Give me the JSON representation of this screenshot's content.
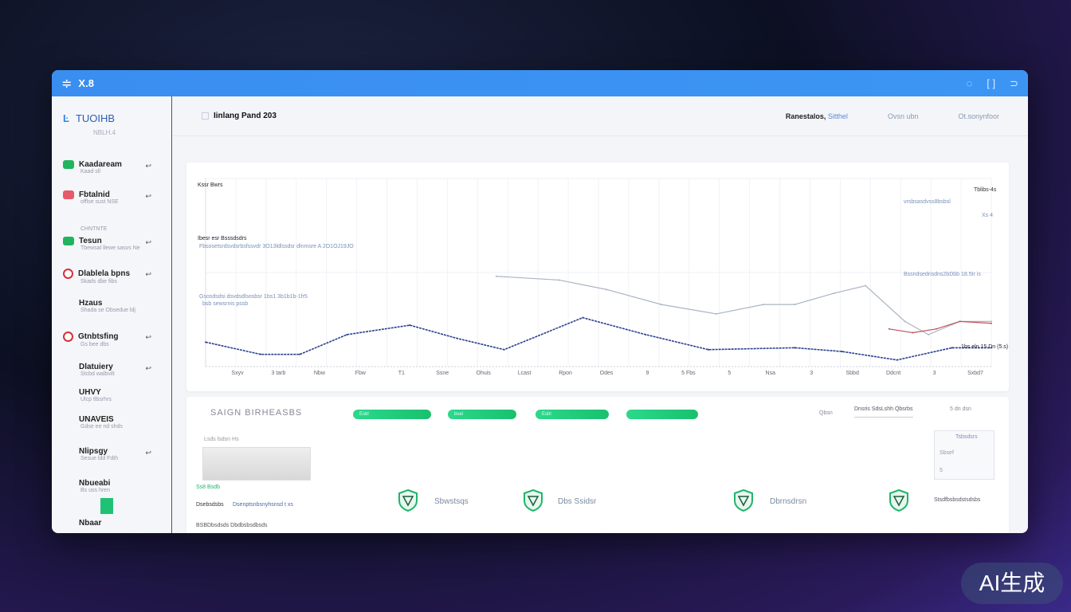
{
  "window": {
    "title": "X.8",
    "icons": [
      "chat-icon",
      "fullscreen-icon",
      "exit-icon"
    ]
  },
  "sidebar": {
    "brand": "TUOIHB",
    "sub": "NBLH.4",
    "items": [
      {
        "label": "Kaadaream",
        "sub": "Kaad sll",
        "color": "#22b35e",
        "kind": "square"
      },
      {
        "label": "Fbtalnid",
        "sub": "offlse sust NSE",
        "color": "#e85a6a",
        "kind": "square"
      },
      {
        "label": "",
        "sub": "CHNTNTE",
        "color": "",
        "kind": "none"
      },
      {
        "label": "Tesun",
        "sub": "Tbewsal llewe sasvs Ne",
        "color": "#22b35e",
        "kind": "square"
      },
      {
        "label": "Dlablela bpns",
        "sub": "Skads dbe fibs",
        "color": "#d8303a",
        "kind": "ring"
      },
      {
        "label": "Hzaus",
        "sub": "Shada se Obsedue ldj",
        "color": "",
        "kind": "none"
      },
      {
        "label": "Gtnbtsfing",
        "sub": "Gs bee dbs",
        "color": "#d8303a",
        "kind": "ring"
      },
      {
        "label": "Dlatuiery",
        "sub": "Stcbd walbvilt",
        "color": "",
        "kind": "none"
      },
      {
        "label": "UHVY",
        "sub": "Ulcp tlbsrhrs",
        "color": "",
        "kind": "none"
      },
      {
        "label": "UNAVEIS",
        "sub": "Gdse ee nd shds",
        "color": "",
        "kind": "none"
      },
      {
        "label": "Nlipsgy",
        "sub": "Sesue ldd Fdth",
        "color": "",
        "kind": "none"
      },
      {
        "label": "Nbueabi",
        "sub": "Bs uss hren",
        "color": "#1fc275",
        "kind": "block"
      },
      {
        "label": "Nbaar",
        "sub": "",
        "color": "",
        "kind": "none"
      }
    ]
  },
  "header": {
    "title": "Iinlang Pand 203",
    "right_label": "Ranestalos,",
    "right_link": "Sitthel",
    "tab1": "Ovsn ubn",
    "tab2": "Ot.sonynfoor"
  },
  "chart_data": {
    "type": "line",
    "title": "Kssr Bwrs",
    "annotations": [
      "Ibesr esr Bsssdsdrs",
      "Fbsosetsrdsvdsrbsfssvdr 3O13ldlssdsr dlnmsre A 2O1OJ19JO",
      "Gsosdsdsi dsvdsdlsosbsr 1bs1 3b1b1b-1fr5",
      "bsb sewsrnis pssb",
      "Bssndsedrisdns2bDbb 18.5Ir is",
      "1bs eln 15 Dn (5.s)"
    ],
    "legend": [
      "Tblibs-4s",
      "vrsbsasdvss8bsbsl",
      "Xs 4"
    ],
    "xlabels": [
      "Sxyv",
      "3 tarb",
      "Nbw",
      "Fbw",
      "T1",
      "Ssne",
      "Ohuis",
      "Lcast",
      "Rpon",
      "Odes",
      "9",
      "5 Fbs",
      "5",
      "Nsa",
      "3",
      "Sbbd",
      "Ddcnt",
      "3",
      "Sxbd7"
    ],
    "series": [
      {
        "color": "#2a3f8f",
        "x": [
          0,
          7,
          12,
          18,
          26,
          32,
          38,
          48,
          56,
          64,
          75,
          81,
          88,
          95,
          100
        ],
        "y": [
          13,
          6.5,
          6.5,
          17,
          22,
          15,
          9,
          26,
          17,
          9,
          10,
          8,
          3.5,
          10,
          10
        ]
      },
      {
        "color": "#aab4c4",
        "x": [
          37,
          45,
          51,
          58,
          65,
          71,
          75,
          80,
          84,
          89,
          92,
          96,
          100
        ],
        "y": [
          48,
          46,
          41,
          33,
          28,
          33,
          33,
          39,
          43,
          24,
          17,
          24,
          24
        ]
      },
      {
        "color": "#c0505a",
        "x": [
          87,
          90,
          93,
          96,
          100
        ],
        "y": [
          20,
          18,
          20,
          24,
          23
        ]
      }
    ],
    "grid": true
  },
  "lower": {
    "title": "SAIGN BIRHEASBS",
    "pills": [
      "Esbl",
      "bsel",
      "Esbl",
      ""
    ],
    "right_labels": [
      "Qbsn",
      "Dnsris SdsLshh Qbsrbs",
      "5 dn dsn"
    ],
    "shields": [
      {
        "label": "Sbwstsqs"
      },
      {
        "label": "Dbs Ssidsr"
      },
      {
        "label": "Dbrnsdrsn"
      },
      {
        "label": "Stsdfbsbsdstsdsbs"
      }
    ],
    "left_rows": [
      "Lsds lsdsn Hs",
      "Ss8 Bsdb",
      "Dsebsdsbs",
      "Dsenptsnbsnyhsnsd t xs",
      "BSBDbsdsds Dbdbsbsdbsds"
    ],
    "side_box": [
      "Tsbsdsrs",
      "Sbsef",
      "5"
    ]
  },
  "badge": "AI生成"
}
